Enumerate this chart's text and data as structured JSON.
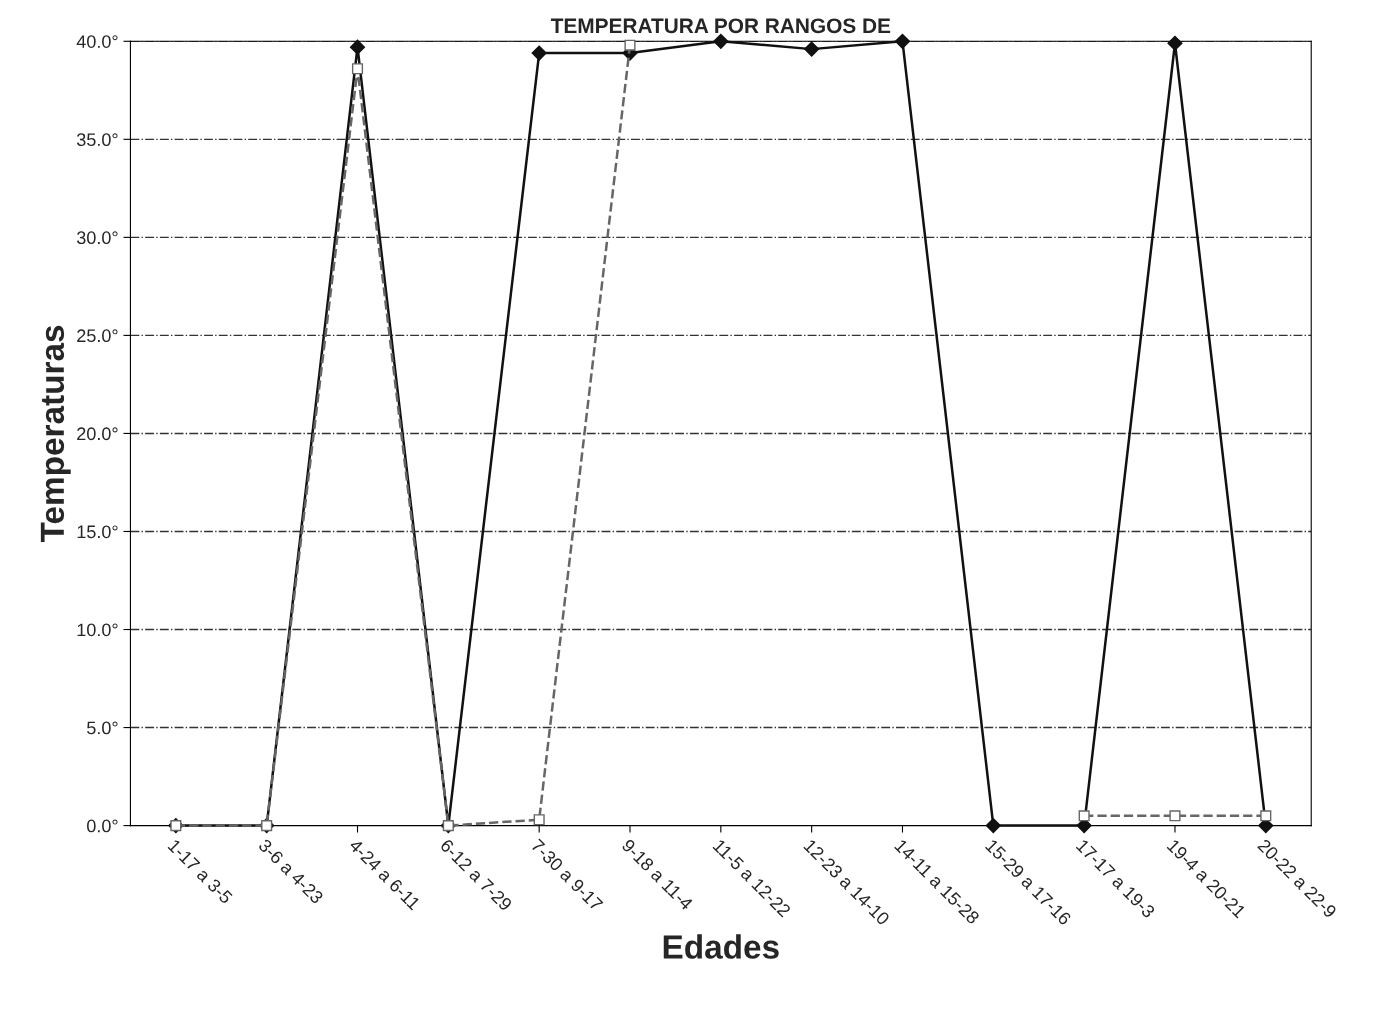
{
  "chart_data": {
    "type": "line",
    "title": "TEMPERATURA POR RANGOS DE",
    "xlabel": "Edades",
    "ylabel": "Temperaturas",
    "categories": [
      "1-17 a 3-5",
      "3-6 a 4-23",
      "4-24 a 6-11",
      "6-12 a 7-29",
      "7-30 a 9-17",
      "9-18 a 11-4",
      "11-5 a 12-22",
      "12-23 a 14-10",
      "14-11 a 15-28",
      "15-29 a 17-16",
      "17-17 a 19-3",
      "19-4 a 20-21",
      "20-22 a 22-9"
    ],
    "series": [
      {
        "color": "#111111",
        "marker": "diamond",
        "line_style": "solid",
        "values": [
          0,
          0,
          39.7,
          0,
          39.4,
          39.4,
          40.0,
          39.6,
          40.0,
          0,
          0,
          39.9,
          0
        ]
      },
      {
        "color": "#666666",
        "marker": "square",
        "line_style": "dashed",
        "values": [
          0,
          0,
          38.6,
          0,
          0.3,
          39.8,
          null,
          null,
          null,
          null,
          0.5,
          0.5,
          0.5
        ]
      }
    ],
    "ylim": [
      0,
      40
    ],
    "yticks": [
      {
        "value": 0,
        "label": "0.0°"
      },
      {
        "value": 5,
        "label": "5.0°"
      },
      {
        "value": 10,
        "label": "10.0°"
      },
      {
        "value": 15,
        "label": "15.0°"
      },
      {
        "value": 20,
        "label": "20.0°"
      },
      {
        "value": 25,
        "label": "25.0°"
      },
      {
        "value": 30,
        "label": "30.0°"
      },
      {
        "value": 35,
        "label": "35.0°"
      },
      {
        "value": 40,
        "label": "40.0°"
      }
    ],
    "grid": "y",
    "legend": false
  }
}
